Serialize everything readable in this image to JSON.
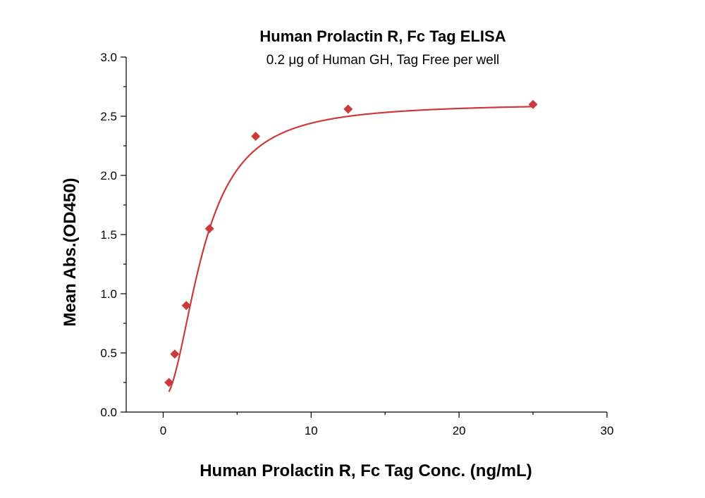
{
  "chart_data": {
    "type": "scatter",
    "title": "Human Prolactin R, Fc Tag ELISA",
    "subtitle": "0.2 μg of Human GH, Tag Free per well",
    "xlabel": "Human Prolactin R, Fc Tag Conc. (ng/mL)",
    "ylabel": "Mean Abs.(OD450)",
    "xlim": [
      -2.5,
      30
    ],
    "ylim": [
      0,
      3.0
    ],
    "x_ticks": [
      0,
      10,
      20,
      30
    ],
    "x_tick_labels": [
      "0",
      "10",
      "20",
      "30"
    ],
    "y_ticks": [
      0,
      0.5,
      1.0,
      1.5,
      2.0,
      2.5,
      3.0
    ],
    "y_tick_labels": [
      "0.0",
      "0.5",
      "1.0",
      "1.5",
      "2.0",
      "2.5",
      "3.0"
    ],
    "grid": false,
    "color": "#cc3a3a",
    "marker": "diamond",
    "fit": "four-parameter logistic curve",
    "series": [
      {
        "x": [
          0.39,
          0.78,
          1.56,
          3.13,
          6.25,
          12.5,
          25
        ],
        "y": [
          0.25,
          0.49,
          0.9,
          1.55,
          2.33,
          2.56,
          2.6
        ]
      }
    ]
  }
}
